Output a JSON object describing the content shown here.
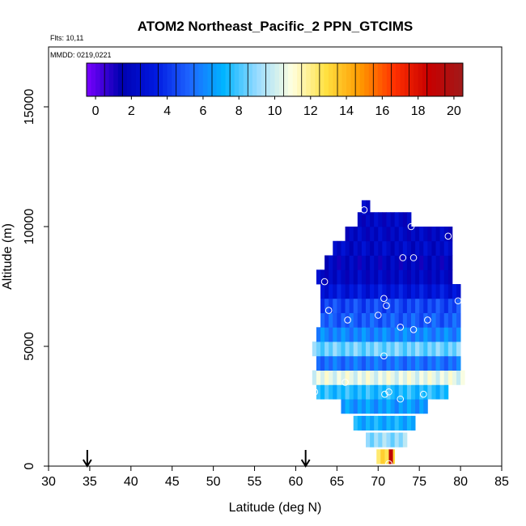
{
  "chart_data": {
    "type": "heatmap",
    "title": "ATOM2 Northeast_Pacific_2 PPN_GTCIMS",
    "flights_label": "Flts: 10,11",
    "mmdd_label": "MMDD: 0219,0221",
    "xlabel": "Latitude (deg N)",
    "ylabel": "Altitude (m)",
    "xlim": [
      30,
      85
    ],
    "ylim": [
      0,
      17500
    ],
    "x_ticks": [
      30,
      35,
      40,
      45,
      50,
      55,
      60,
      65,
      70,
      75,
      80,
      85
    ],
    "y_ticks": [
      0,
      5000,
      10000,
      15000
    ],
    "colorbar": {
      "min": -0.5,
      "max": 20.5,
      "ticks": [
        0,
        2,
        4,
        6,
        8,
        10,
        12,
        14,
        16,
        18,
        20
      ],
      "stops": [
        "#7a00ff",
        "#0000b0",
        "#0018e0",
        "#1e64ff",
        "#00b4ff",
        "#9adcff",
        "#ffffe0",
        "#ffe040",
        "#ff9a00",
        "#ff3000",
        "#c80000",
        "#a01a1a"
      ]
    },
    "arrows_at_lat": [
      34.7,
      61.2
    ],
    "profile": [
      {
        "alt": 400,
        "lo": 69.8,
        "hi": 72.0,
        "value": 13.0,
        "hot": 19.0
      },
      {
        "alt": 1100,
        "lo": 68.5,
        "hi": 73.5,
        "value": 9.0
      },
      {
        "alt": 1800,
        "lo": 67.0,
        "hi": 74.5,
        "value": 7.0
      },
      {
        "alt": 2500,
        "lo": 65.5,
        "hi": 76.0,
        "value": 6.5
      },
      {
        "alt": 3100,
        "lo": 62.5,
        "hi": 78.5,
        "value": 7.5
      },
      {
        "alt": 3700,
        "lo": 62.0,
        "hi": 80.5,
        "value": 10.5
      },
      {
        "alt": 4300,
        "lo": 62.5,
        "hi": 80.0,
        "value": 5.5
      },
      {
        "alt": 4900,
        "lo": 62.0,
        "hi": 80.0,
        "value": 8.5
      },
      {
        "alt": 5500,
        "lo": 62.5,
        "hi": 80.0,
        "value": 6.0
      },
      {
        "alt": 6100,
        "lo": 63.0,
        "hi": 80.0,
        "value": 5.0
      },
      {
        "alt": 6700,
        "lo": 63.0,
        "hi": 80.0,
        "value": 4.5
      },
      {
        "alt": 7300,
        "lo": 63.0,
        "hi": 80.0,
        "value": 3.0
      },
      {
        "alt": 7900,
        "lo": 62.5,
        "hi": 79.0,
        "value": 2.0
      },
      {
        "alt": 8500,
        "lo": 63.5,
        "hi": 79.0,
        "value": 1.8
      },
      {
        "alt": 9100,
        "lo": 64.5,
        "hi": 79.0,
        "value": 2.2
      },
      {
        "alt": 9700,
        "lo": 66.0,
        "hi": 79.0,
        "value": 2.0
      },
      {
        "alt": 10300,
        "lo": 67.5,
        "hi": 74.0,
        "value": 2.0
      },
      {
        "alt": 10800,
        "lo": 68.0,
        "hi": 69.0,
        "value": 2.0
      }
    ],
    "points": [
      {
        "lat": 68.3,
        "alt": 10700
      },
      {
        "lat": 74.0,
        "alt": 10000
      },
      {
        "lat": 78.5,
        "alt": 9600
      },
      {
        "lat": 73.0,
        "alt": 8700
      },
      {
        "lat": 74.3,
        "alt": 8700
      },
      {
        "lat": 63.5,
        "alt": 7700
      },
      {
        "lat": 70.7,
        "alt": 7000
      },
      {
        "lat": 71.0,
        "alt": 6700
      },
      {
        "lat": 79.7,
        "alt": 6900
      },
      {
        "lat": 64.0,
        "alt": 6500
      },
      {
        "lat": 70.0,
        "alt": 6300
      },
      {
        "lat": 66.3,
        "alt": 6100
      },
      {
        "lat": 76.0,
        "alt": 6100
      },
      {
        "lat": 72.7,
        "alt": 5800
      },
      {
        "lat": 74.3,
        "alt": 5700
      },
      {
        "lat": 70.7,
        "alt": 4600
      },
      {
        "lat": 66.0,
        "alt": 3500
      },
      {
        "lat": 62.3,
        "alt": 3100
      },
      {
        "lat": 70.8,
        "alt": 3000
      },
      {
        "lat": 71.3,
        "alt": 3100
      },
      {
        "lat": 75.5,
        "alt": 3000
      },
      {
        "lat": 72.7,
        "alt": 2800
      },
      {
        "lat": 71.3,
        "alt": 100
      }
    ]
  }
}
